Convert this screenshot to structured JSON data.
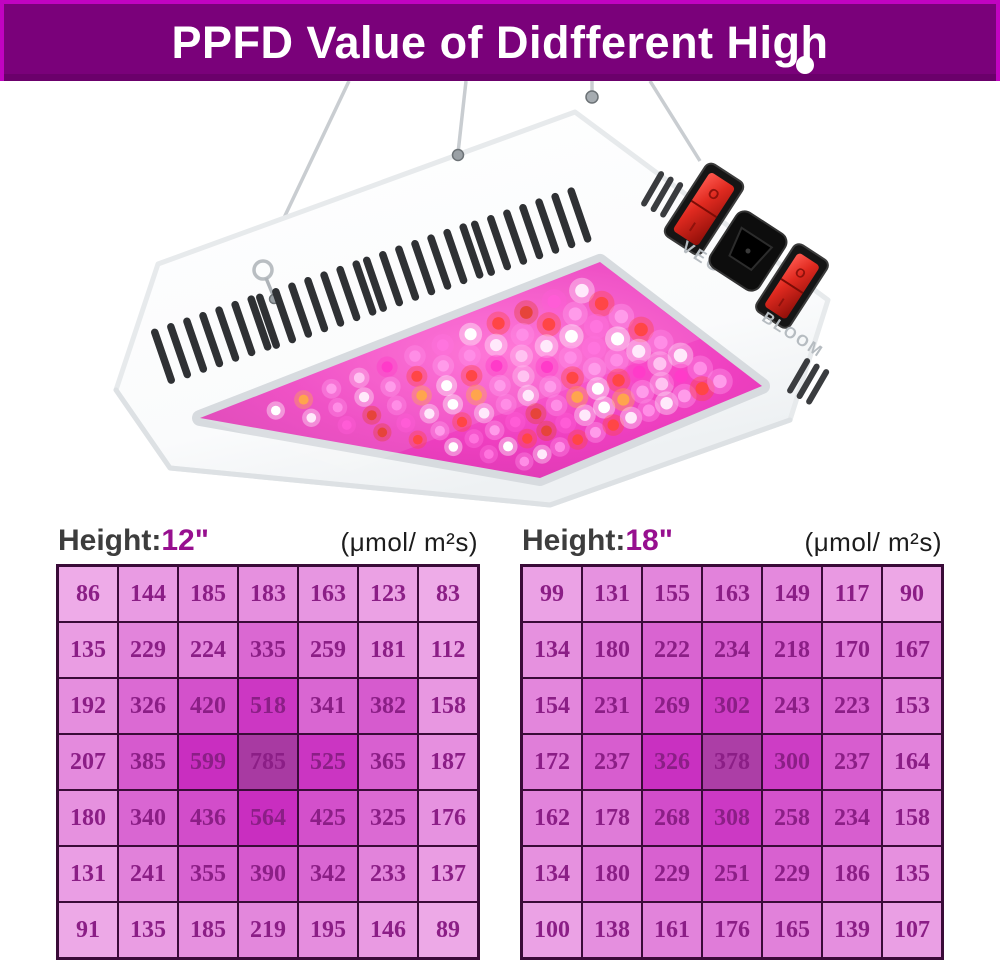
{
  "banner": {
    "title": "PPFD Value of Didfferent High",
    "bg_color": "#7a017a",
    "border_color": "#c103c1",
    "text_color": "#ffffff"
  },
  "product": {
    "veg_label": "VEG",
    "bloom_label": "BLOOM",
    "switch_off_mark": "O",
    "switch_on_mark": "I",
    "body_color": "#fdfdfd",
    "panel_colors": [
      "#ff6ad4",
      "#ee3fc0",
      "#d636ae"
    ],
    "led_palette": [
      "#ffffff",
      "#ff8de6",
      "#ff5cd6",
      "#ffc2f1",
      "#ff4646",
      "#ffa54d",
      "#ff74de",
      "#ffe9fb",
      "#ff3bc9",
      "#e6443a",
      "#ff9bea",
      "#ffffff"
    ]
  },
  "tables": [
    {
      "label": "Height:",
      "height_value": "12\"",
      "unit": "(μmol/ m²s)",
      "grid_border_color": "#3a0b38",
      "value_text_color": "#8b1e86",
      "cell_colors": [
        [
          "#eeabe8",
          "#e99be3",
          "#e690df",
          "#e690df",
          "#e796e1",
          "#eba1e4",
          "#eeace8"
        ],
        [
          "#ea9de3",
          "#e284db",
          "#e385dc",
          "#da68d2",
          "#e07cd9",
          "#e691df",
          "#eba3e5"
        ],
        [
          "#e58ede",
          "#db6ad3",
          "#d351cb",
          "#cc37c3",
          "#d966d2",
          "#d65bce",
          "#e897e1"
        ],
        [
          "#e48add",
          "#d65ace",
          "#c92ec0",
          "#a83aa2",
          "#cb35c2",
          "#d860d0",
          "#e68fdf"
        ],
        [
          "#e691df",
          "#d966d2",
          "#d24dca",
          "#c92ec0",
          "#d350cb",
          "#db6ad3",
          "#e692e0"
        ],
        [
          "#ea9ee4",
          "#e181da",
          "#d862d1",
          "#d659ce",
          "#d966d2",
          "#e283db",
          "#ea9de3"
        ],
        [
          "#eda9e7",
          "#ea9de3",
          "#e690df",
          "#e387dc",
          "#e58dde",
          "#e99ae2",
          "#eda9e7"
        ]
      ]
    },
    {
      "label": "Height:",
      "height_value": "18\"",
      "unit": "(μmol/ m²s)",
      "grid_border_color": "#3a0b38",
      "value_text_color": "#8b1e86",
      "cell_colors": [
        [
          "#eba2e5",
          "#e692e0",
          "#e386dc",
          "#e282db",
          "#e489dd",
          "#e999e2",
          "#eda7e6"
        ],
        [
          "#e691df",
          "#df7ad8",
          "#d964d1",
          "#d75ecf",
          "#da66d2",
          "#e17fda",
          "#e180da"
        ],
        [
          "#e386dc",
          "#d860d0",
          "#d24dca",
          "#cd3cc4",
          "#d65ace",
          "#d964d1",
          "#e386dc"
        ],
        [
          "#e07ed9",
          "#d75dcf",
          "#c930c1",
          "#ac3ea6",
          "#cd3dc5",
          "#d75dcf",
          "#e282db"
        ],
        [
          "#e283db",
          "#df7bd8",
          "#d24dca",
          "#cc39c4",
          "#d452cc",
          "#d75ecf",
          "#e285dc"
        ],
        [
          "#e691df",
          "#df7ad8",
          "#d861d0",
          "#d556cd",
          "#d861d0",
          "#de77d7",
          "#e690df"
        ],
        [
          "#eba2e5",
          "#e58fdf",
          "#e283db",
          "#e07cd9",
          "#e181da",
          "#e58fdf",
          "#ea9fe4"
        ]
      ]
    }
  ],
  "chart_data": [
    {
      "type": "heatmap",
      "title": "Height: 12\"",
      "unit": "μmol/m²s",
      "rows": 7,
      "cols": 7,
      "values": [
        [
          86,
          144,
          185,
          183,
          163,
          123,
          83
        ],
        [
          135,
          229,
          224,
          335,
          259,
          181,
          112
        ],
        [
          192,
          326,
          420,
          518,
          341,
          382,
          158
        ],
        [
          207,
          385,
          599,
          785,
          525,
          365,
          187
        ],
        [
          180,
          340,
          436,
          564,
          425,
          325,
          176
        ],
        [
          131,
          241,
          355,
          390,
          342,
          233,
          137
        ],
        [
          91,
          135,
          185,
          219,
          195,
          146,
          89
        ]
      ],
      "max_value": 785,
      "note": "cell shading darkens with higher PPFD; peak cell shown darkest"
    },
    {
      "type": "heatmap",
      "title": "Height: 18\"",
      "unit": "μmol/m²s",
      "rows": 7,
      "cols": 7,
      "values": [
        [
          99,
          131,
          155,
          163,
          149,
          117,
          90
        ],
        [
          134,
          180,
          222,
          234,
          218,
          170,
          167
        ],
        [
          154,
          231,
          269,
          302,
          243,
          223,
          153
        ],
        [
          172,
          237,
          326,
          378,
          300,
          237,
          164
        ],
        [
          162,
          178,
          268,
          308,
          258,
          234,
          158
        ],
        [
          134,
          180,
          229,
          251,
          229,
          186,
          135
        ],
        [
          100,
          138,
          161,
          176,
          165,
          139,
          107
        ]
      ],
      "max_value": 378,
      "note": "cell shading darkens with higher PPFD; peak cell shown darkest"
    }
  ]
}
